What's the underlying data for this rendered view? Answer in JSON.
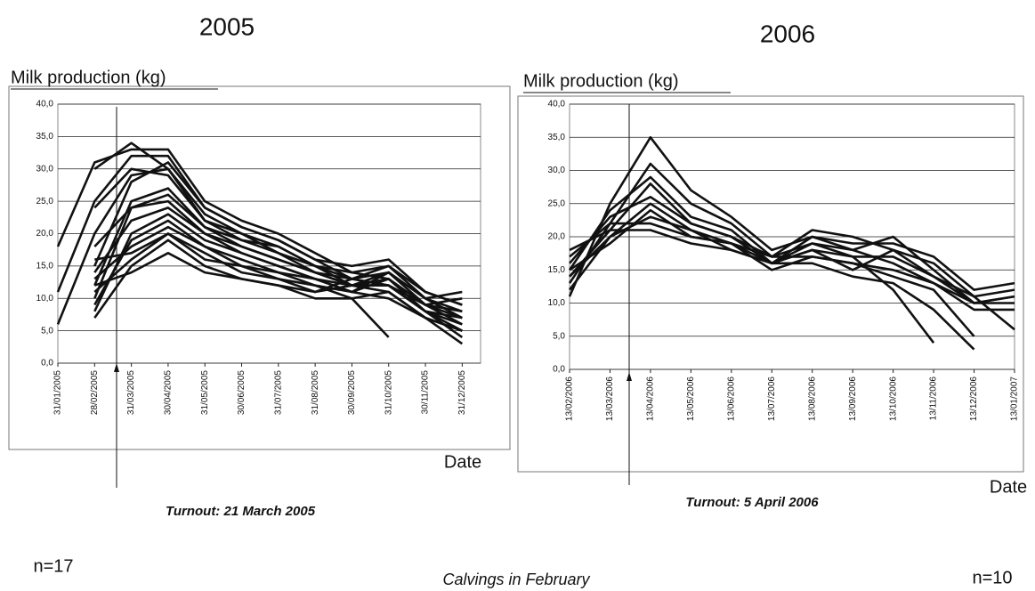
{
  "chart_data": [
    {
      "type": "line",
      "title": "2005",
      "y_label": "Milk production (kg)",
      "x_label": "Date",
      "annotation": "Turnout: 21 March 2005",
      "n_label": "n=17",
      "color": "#111111",
      "grid": true,
      "categories": [
        "31/01/2005",
        "28/02/2005",
        "31/03/2005",
        "30/04/2005",
        "31/05/2005",
        "30/06/2005",
        "31/07/2005",
        "31/08/2005",
        "30/09/2005",
        "31/10/2005",
        "30/11/2005",
        "31/12/2005"
      ],
      "ylim": [
        0,
        40
      ],
      "yticks": [
        {
          "value": 0,
          "label": "0,0"
        },
        {
          "value": 5,
          "label": "5,0"
        },
        {
          "value": 10,
          "label": "10,0"
        },
        {
          "value": 15,
          "label": "15,0"
        },
        {
          "value": 20,
          "label": "20,0"
        },
        {
          "value": 25,
          "label": "25,0"
        },
        {
          "value": 30,
          "label": "30,0"
        },
        {
          "value": 35,
          "label": "35,0"
        },
        {
          "value": 40,
          "label": "40,0"
        }
      ],
      "series": [
        {
          "values": [
            18,
            31,
            33,
            33,
            25,
            22,
            20,
            17,
            14,
            13,
            9,
            6
          ]
        },
        {
          "values": [
            11,
            25,
            32,
            32,
            24,
            21,
            19,
            16,
            13,
            14,
            10,
            7
          ]
        },
        {
          "values": [
            6,
            20,
            29,
            30,
            23,
            20,
            18,
            15,
            13,
            12,
            8,
            5
          ]
        },
        {
          "values": [
            null,
            30,
            34,
            30,
            22,
            19,
            18,
            15,
            14,
            15,
            10,
            8
          ]
        },
        {
          "values": [
            null,
            24,
            30,
            29,
            22,
            20,
            17,
            15,
            12,
            13,
            9,
            7
          ]
        },
        {
          "values": [
            null,
            15,
            28,
            31,
            24,
            21,
            19,
            16,
            15,
            16,
            11,
            9
          ]
        },
        {
          "values": [
            null,
            12,
            25,
            27,
            21,
            19,
            17,
            14,
            13,
            12,
            8,
            4
          ]
        },
        {
          "values": [
            null,
            10,
            24,
            26,
            21,
            18,
            16,
            14,
            12,
            11,
            7,
            5
          ]
        },
        {
          "values": [
            null,
            18,
            24,
            25,
            20,
            17,
            15,
            13,
            11,
            14,
            10,
            11
          ]
        },
        {
          "values": [
            null,
            14,
            22,
            24,
            20,
            18,
            16,
            14,
            12,
            12,
            9,
            10
          ]
        },
        {
          "values": [
            null,
            8,
            20,
            23,
            19,
            17,
            15,
            13,
            11,
            13,
            8,
            6
          ]
        },
        {
          "values": [
            null,
            9,
            19,
            22,
            18,
            16,
            14,
            13,
            12,
            14,
            9,
            8
          ]
        },
        {
          "values": [
            null,
            13,
            18,
            21,
            18,
            15,
            14,
            12,
            11,
            10,
            7,
            3
          ]
        },
        {
          "values": [
            null,
            16,
            17,
            20,
            17,
            14,
            13,
            12,
            10,
            4,
            null,
            null
          ]
        },
        {
          "values": [
            null,
            11,
            16,
            20,
            16,
            15,
            13,
            11,
            13,
            15,
            11,
            9
          ]
        },
        {
          "values": [
            null,
            7,
            15,
            19,
            15,
            13,
            12,
            11,
            12,
            12,
            8,
            7
          ]
        },
        {
          "values": [
            null,
            12,
            14,
            17,
            14,
            13,
            12,
            10,
            10,
            11,
            7,
            5
          ]
        }
      ]
    },
    {
      "type": "line",
      "title": "2006",
      "y_label": "Milk production (kg)",
      "x_label": "Date",
      "annotation": "Turnout: 5 April 2006",
      "n_label": "n=10",
      "color": "#111111",
      "grid": true,
      "categories": [
        "13/02/2006",
        "13/03/2006",
        "13/04/2006",
        "13/05/2006",
        "13/06/2006",
        "13/07/2006",
        "13/08/2006",
        "13/09/2006",
        "13/10/2006",
        "13/11/2006",
        "13/12/2006",
        "13/01/2007"
      ],
      "ylim": [
        0,
        40
      ],
      "yticks": [
        {
          "value": 0,
          "label": "0,0"
        },
        {
          "value": 5,
          "label": "5,0"
        },
        {
          "value": 10,
          "label": "10,0"
        },
        {
          "value": 15,
          "label": "15,0"
        },
        {
          "value": 20,
          "label": "20,0"
        },
        {
          "value": 25,
          "label": "25,0"
        },
        {
          "value": 30,
          "label": "30,0"
        },
        {
          "value": 35,
          "label": "35,0"
        },
        {
          "value": 40,
          "label": "40,0"
        }
      ],
      "series": [
        {
          "values": [
            11,
            25,
            35,
            27,
            23,
            18,
            20,
            19,
            19,
            17,
            12,
            13
          ]
        },
        {
          "values": [
            13,
            22,
            31,
            25,
            22,
            17,
            21,
            20,
            18,
            16,
            11,
            12
          ]
        },
        {
          "values": [
            15,
            24,
            29,
            23,
            21,
            16,
            19,
            18,
            20,
            15,
            10,
            11
          ]
        },
        {
          "values": [
            14,
            21,
            28,
            22,
            20,
            16,
            18,
            17,
            17,
            14,
            10,
            10
          ]
        },
        {
          "values": [
            16,
            23,
            26,
            22,
            20,
            17,
            17,
            16,
            15,
            13,
            9,
            9
          ]
        },
        {
          "values": [
            12,
            20,
            25,
            21,
            19,
            16,
            18,
            15,
            18,
            14,
            11,
            6
          ]
        },
        {
          "values": [
            15,
            19,
            24,
            20,
            19,
            15,
            17,
            16,
            14,
            12,
            5,
            null
          ]
        },
        {
          "values": [
            14,
            20,
            23,
            21,
            18,
            16,
            16,
            14,
            13,
            9,
            3,
            null
          ]
        },
        {
          "values": [
            17,
            22,
            22,
            20,
            19,
            17,
            19,
            17,
            12,
            4,
            null,
            null
          ]
        },
        {
          "values": [
            18,
            21,
            21,
            19,
            18,
            16,
            20,
            18,
            16,
            13,
            10,
            11
          ]
        }
      ]
    }
  ],
  "caption": "Calvings in February"
}
